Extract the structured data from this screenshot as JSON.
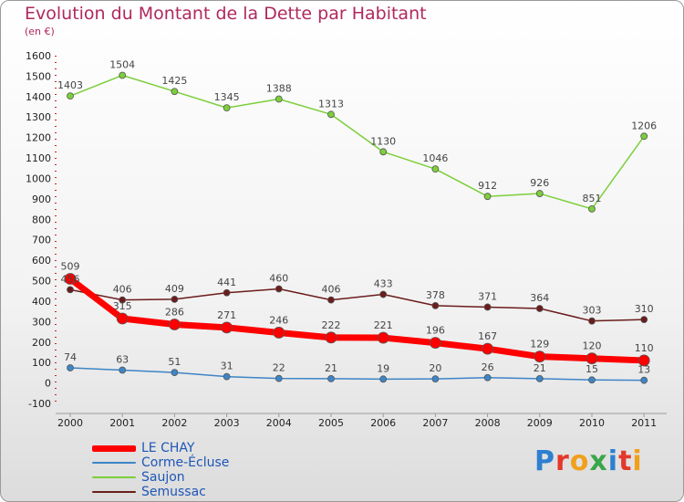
{
  "title": "Evolution du Montant de la Dette par Habitant",
  "subtitle": "(en €)",
  "logo": {
    "text": "Proxiti",
    "colors": [
      "#2e7fd0",
      "#e5382a",
      "#f0a01c",
      "#3aa64a",
      "#2e7fd0",
      "#e5382a",
      "#f0a01c"
    ]
  },
  "chart_data": {
    "type": "line",
    "title": "Evolution du Montant de la Dette par Habitant",
    "subtitle": "(en €)",
    "categories": [
      "2000",
      "2001",
      "2002",
      "2003",
      "2004",
      "2005",
      "2006",
      "2007",
      "2008",
      "2009",
      "2010",
      "2011"
    ],
    "ylim": [
      -100,
      1600
    ],
    "yticks": [
      -100,
      0,
      100,
      200,
      300,
      400,
      500,
      600,
      700,
      800,
      900,
      1000,
      1100,
      1200,
      1300,
      1400,
      1500,
      1600
    ],
    "grid": false,
    "legend_position": "bottom-left",
    "series": [
      {
        "name": "LE CHAY",
        "color": "#ff0000",
        "values": [
          509,
          315,
          286,
          271,
          246,
          222,
          221,
          196,
          167,
          129,
          120,
          110
        ]
      },
      {
        "name": "Corme-Écluse",
        "color": "#3d85c6",
        "values": [
          74,
          63,
          51,
          31,
          22,
          21,
          19,
          20,
          26,
          21,
          15,
          13
        ]
      },
      {
        "name": "Saujon",
        "color": "#7ccf3b",
        "values": [
          1403,
          1504,
          1425,
          1345,
          1388,
          1313,
          1130,
          1046,
          912,
          926,
          851,
          1206
        ]
      },
      {
        "name": "Semussac",
        "color": "#6b1c1c",
        "values": [
          456,
          406,
          409,
          441,
          460,
          406,
          433,
          378,
          371,
          364,
          303,
          310
        ]
      }
    ]
  }
}
